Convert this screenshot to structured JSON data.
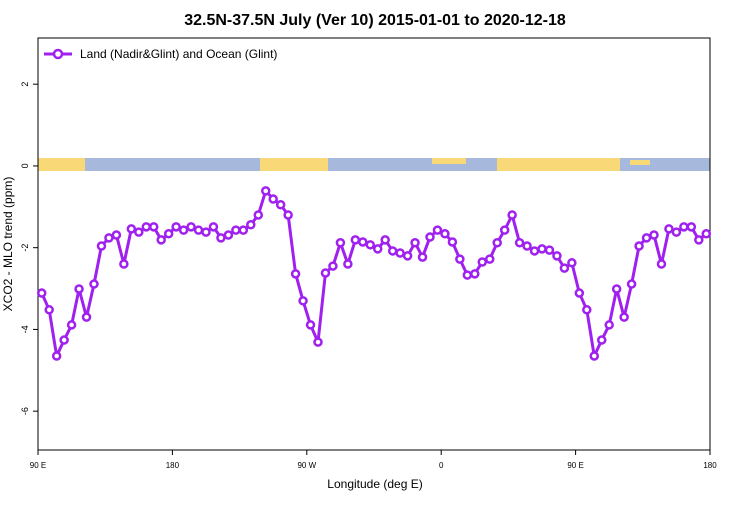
{
  "chart_data": {
    "type": "line",
    "title": "32.5N-37.5N July (Ver 10)   2015-01-01 to 2020-12-18",
    "x_label": "Longitude (deg E)",
    "y_label": "XCO2 - MLO trend (ppm)",
    "legend_position": "top-left",
    "xlim": [
      90,
      540
    ],
    "ylim": [
      -6.95,
      3.13
    ],
    "xticks": [
      {
        "value": 90,
        "label": "90 E"
      },
      {
        "value": 180,
        "label": "180"
      },
      {
        "value": 270,
        "label": "90 W"
      },
      {
        "value": 360,
        "label": "0"
      },
      {
        "value": 450,
        "label": "90 E"
      },
      {
        "value": 540,
        "label": "180"
      }
    ],
    "yticks": [
      2,
      0,
      -2,
      -4,
      -6
    ],
    "x": [
      92.5,
      97.5,
      102.5,
      107.5,
      112.5,
      117.5,
      122.5,
      127.5,
      132.5,
      137.5,
      142.5,
      147.5,
      152.5,
      157.5,
      162.5,
      167.5,
      172.5,
      177.5,
      182.5,
      187.5,
      192.5,
      197.5,
      202.5,
      207.5,
      212.5,
      217.5,
      222.5,
      227.5,
      232.5,
      237.5,
      242.5,
      247.5,
      252.5,
      257.5,
      262.5,
      267.5,
      272.5,
      277.5,
      282.5,
      287.5,
      292.5,
      297.5,
      302.5,
      307.5,
      312.5,
      317.5,
      322.5,
      327.5,
      332.5,
      337.5,
      342.5,
      347.5,
      352.5,
      357.5,
      362.5,
      367.5,
      372.5,
      377.5,
      382.5,
      387.5,
      392.5,
      397.5,
      402.5,
      407.5,
      412.5,
      417.5,
      422.5,
      427.5,
      432.5,
      437.5,
      442.5,
      447.5,
      452.5,
      457.5,
      462.5,
      467.5,
      472.5,
      477.5,
      482.5,
      487.5,
      492.5,
      497.5,
      502.5,
      507.5,
      512.5,
      517.5,
      522.5,
      527.5,
      532.5,
      537.5
    ],
    "series": [
      {
        "name": "Land (Nadir&Glint) and Ocean (Glint)",
        "color": "#a020f0",
        "values": [
          -3.11,
          -3.52,
          -4.65,
          -4.26,
          -3.89,
          -3.01,
          -3.7,
          -2.89,
          -1.96,
          -1.76,
          -1.69,
          -2.4,
          -1.54,
          -1.62,
          -1.49,
          -1.49,
          -1.81,
          -1.66,
          -1.49,
          -1.57,
          -1.49,
          -1.57,
          -1.62,
          -1.49,
          -1.76,
          -1.69,
          -1.57,
          -1.57,
          -1.44,
          -1.2,
          -0.61,
          -0.81,
          -0.95,
          -1.2,
          -2.64,
          -3.3,
          -3.89,
          -4.31,
          -2.62,
          -2.45,
          -1.88,
          -2.4,
          -1.81,
          -1.86,
          -1.93,
          -2.03,
          -1.81,
          -2.08,
          -2.13,
          -2.2,
          -1.88,
          -2.23,
          -1.74,
          -1.57,
          -1.66,
          -1.86,
          -2.28,
          -2.67,
          -2.64,
          -2.35,
          -2.28,
          -1.88,
          -1.57,
          -1.2,
          -1.88,
          -1.96,
          -2.08,
          -2.03,
          -2.06,
          -2.2,
          -2.5,
          -2.37,
          -3.11,
          -3.52,
          -4.65,
          -4.26,
          -3.89,
          -3.01,
          -3.7,
          -2.89,
          -1.96,
          -1.76,
          -1.69,
          -2.4,
          -1.54,
          -1.62,
          -1.49,
          -1.49,
          -1.81,
          -1.66
        ]
      }
    ]
  }
}
